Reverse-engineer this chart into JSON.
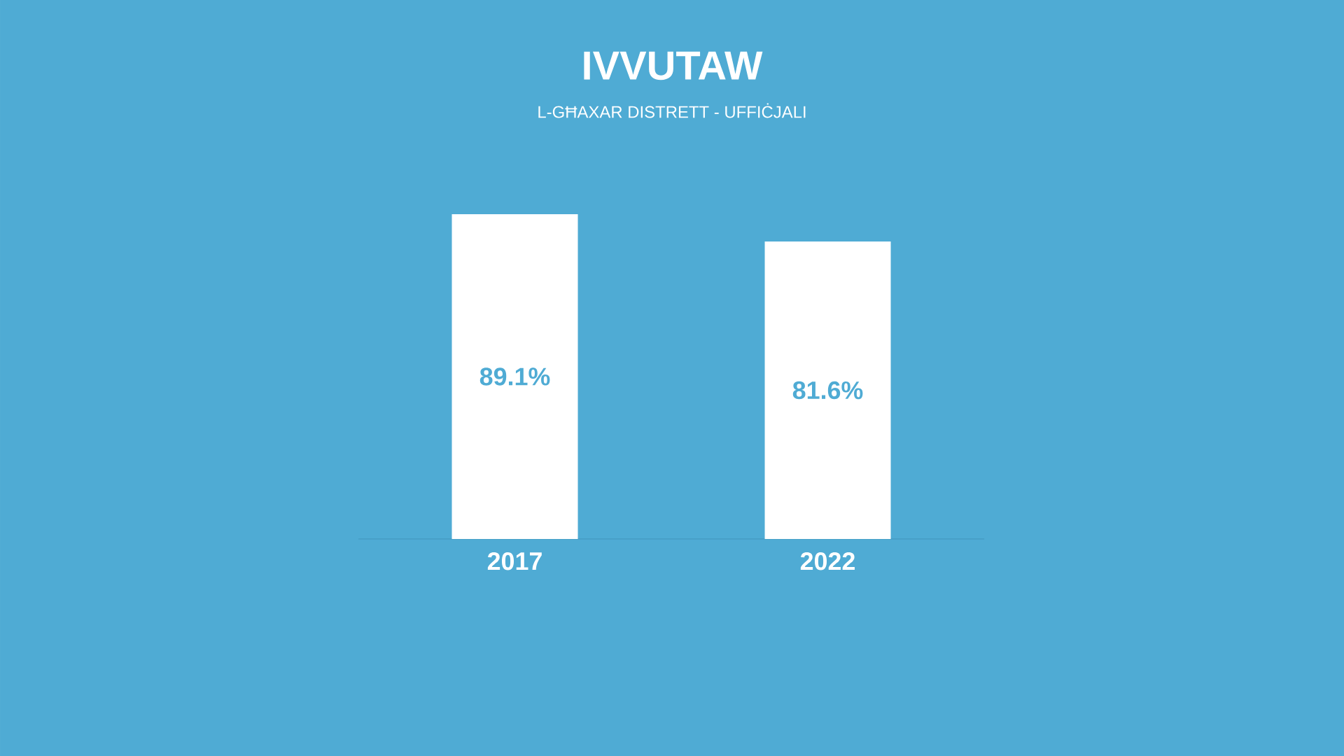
{
  "chart_data": {
    "type": "bar",
    "title": "IVVUTAW",
    "subtitle": "L-GĦAXAR DISTRETT - UFFIĊJALI",
    "categories": [
      "2017",
      "2022"
    ],
    "values": [
      89.1,
      81.6
    ],
    "value_labels": [
      "89.1%",
      "81.6%"
    ],
    "color": "#ffffff"
  }
}
